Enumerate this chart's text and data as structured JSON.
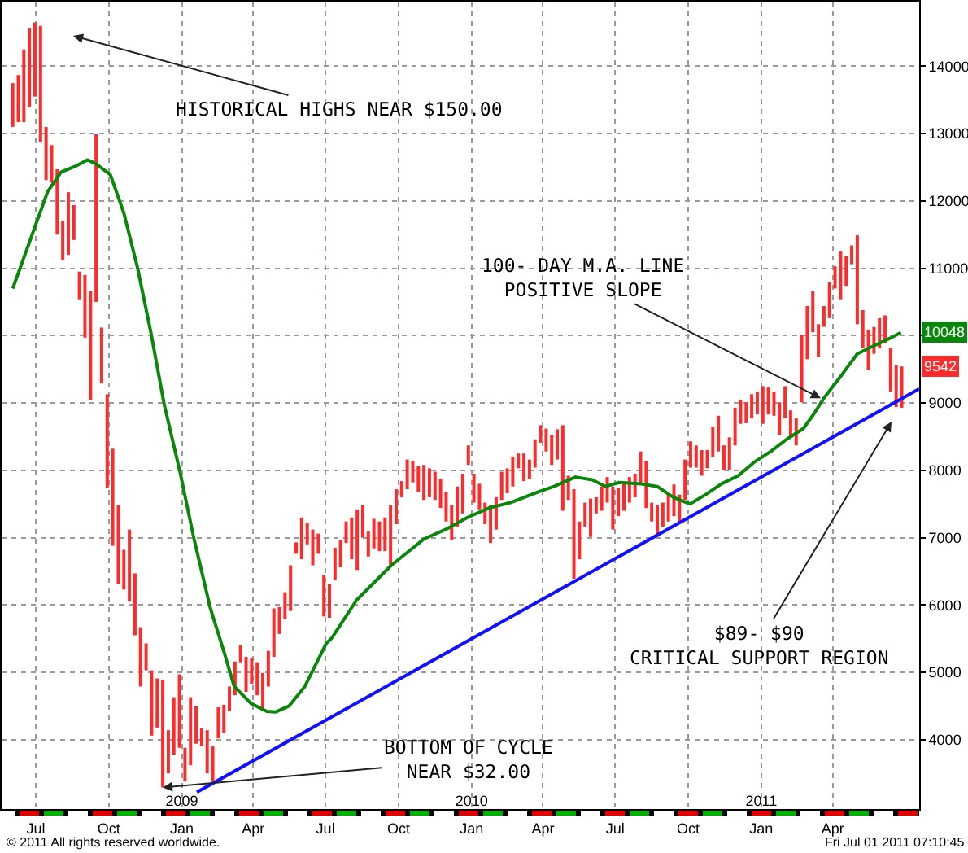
{
  "chart_data": {
    "type": "bar",
    "xlim": [
      "2008-05-19",
      "2011-07-19"
    ],
    "ylim": [
      2970,
      14960
    ],
    "xticks": [
      {
        "value": "2008-07-01",
        "label": "Jul"
      },
      {
        "value": "2008-10-01",
        "label": "Oct"
      },
      {
        "value": "2009-01-01",
        "label": "Jan"
      },
      {
        "value": "2009-04-01",
        "label": "Apr"
      },
      {
        "value": "2009-07-01",
        "label": "Jul"
      },
      {
        "value": "2009-10-01",
        "label": "Oct"
      },
      {
        "value": "2010-01-01",
        "label": "Jan"
      },
      {
        "value": "2010-04-01",
        "label": "Apr"
      },
      {
        "value": "2010-07-01",
        "label": "Jul"
      },
      {
        "value": "2010-10-01",
        "label": "Oct"
      },
      {
        "value": "2011-01-01",
        "label": "Jan"
      },
      {
        "value": "2011-04-01",
        "label": "Apr"
      }
    ],
    "x2lim": [
      "2008-05-19",
      "2011-07-19"
    ],
    "x2ticks": [
      {
        "value": "2009-01-01",
        "label": "2009"
      },
      {
        "value": "2010-01-01",
        "label": "2010"
      },
      {
        "value": "2011-01-01",
        "label": "2011"
      }
    ],
    "yticks": [
      4000,
      5000,
      6000,
      7000,
      8000,
      9000,
      {
        "value": 10000,
        "label": null
      },
      11000,
      12000,
      13000,
      14000
    ],
    "grid": true,
    "series": [
      {
        "color": "#ff2a2a",
        "x": [
          "2008-06-02",
          "2008-06-09",
          "2008-06-16",
          "2008-06-23",
          "2008-06-30",
          "2008-07-07",
          "2008-07-14",
          "2008-07-21",
          "2008-07-28",
          "2008-08-04",
          "2008-08-11",
          "2008-08-18",
          "2008-08-25",
          "2008-09-01",
          "2008-09-08",
          "2008-09-15",
          "2008-09-22",
          "2008-09-29",
          "2008-10-06",
          "2008-10-13",
          "2008-10-20",
          "2008-10-27",
          "2008-11-03",
          "2008-11-10",
          "2008-11-17",
          "2008-11-24",
          "2008-12-01",
          "2008-12-08",
          "2008-12-15",
          "2008-12-22",
          "2008-12-29",
          "2009-01-05",
          "2009-01-12",
          "2009-01-19",
          "2009-01-26",
          "2009-02-02",
          "2009-02-09",
          "2009-02-16",
          "2009-02-23",
          "2009-03-02",
          "2009-03-09",
          "2009-03-16",
          "2009-03-23",
          "2009-03-30",
          "2009-04-06",
          "2009-04-13",
          "2009-04-20",
          "2009-04-27",
          "2009-05-04",
          "2009-05-11",
          "2009-05-18",
          "2009-05-25",
          "2009-06-01",
          "2009-06-08",
          "2009-06-15",
          "2009-06-22",
          "2009-06-29",
          "2009-07-06",
          "2009-07-13",
          "2009-07-20",
          "2009-07-27",
          "2009-08-03",
          "2009-08-10",
          "2009-08-17",
          "2009-08-24",
          "2009-08-31",
          "2009-09-07",
          "2009-09-14",
          "2009-09-21",
          "2009-09-28",
          "2009-10-05",
          "2009-10-12",
          "2009-10-19",
          "2009-10-26",
          "2009-11-02",
          "2009-11-09",
          "2009-11-16",
          "2009-11-23",
          "2009-11-30",
          "2009-12-07",
          "2009-12-14",
          "2009-12-21",
          "2009-12-28",
          "2010-01-04",
          "2010-01-11",
          "2010-01-18",
          "2010-01-25",
          "2010-02-01",
          "2010-02-08",
          "2010-02-15",
          "2010-02-22",
          "2010-03-01",
          "2010-03-08",
          "2010-03-15",
          "2010-03-22",
          "2010-03-29",
          "2010-04-05",
          "2010-04-12",
          "2010-04-19",
          "2010-04-26",
          "2010-05-03",
          "2010-05-10",
          "2010-05-17",
          "2010-05-24",
          "2010-05-31",
          "2010-06-07",
          "2010-06-14",
          "2010-06-21",
          "2010-06-28",
          "2010-07-05",
          "2010-07-12",
          "2010-07-19",
          "2010-07-26",
          "2010-08-02",
          "2010-08-09",
          "2010-08-16",
          "2010-08-23",
          "2010-08-30",
          "2010-09-06",
          "2010-09-13",
          "2010-09-20",
          "2010-09-27",
          "2010-10-04",
          "2010-10-11",
          "2010-10-18",
          "2010-10-25",
          "2010-11-01",
          "2010-11-08",
          "2010-11-15",
          "2010-11-22",
          "2010-11-29",
          "2010-12-06",
          "2010-12-13",
          "2010-12-20",
          "2010-12-27",
          "2011-01-03",
          "2011-01-10",
          "2011-01-17",
          "2011-01-24",
          "2011-01-31",
          "2011-02-07",
          "2011-02-14",
          "2011-02-21",
          "2011-02-28",
          "2011-03-07",
          "2011-03-14",
          "2011-03-21",
          "2011-03-28",
          "2011-04-04",
          "2011-04-11",
          "2011-04-18",
          "2011-04-25",
          "2011-05-02",
          "2011-05-09",
          "2011-05-16",
          "2011-05-23",
          "2011-05-30",
          "2011-06-06",
          "2011-06-13",
          "2011-06-20",
          "2011-06-27"
        ],
        "base": [
          13100,
          13170,
          13170,
          13390,
          13550,
          12870,
          12310,
          12270,
          11500,
          11120,
          11200,
          11420,
          10540,
          9970,
          9050,
          10500,
          9290,
          7740,
          6880,
          6310,
          6230,
          6050,
          5550,
          4790,
          5030,
          4060,
          4180,
          3290,
          3500,
          3780,
          3880,
          3380,
          3620,
          3940,
          3900,
          3500,
          3380,
          4020,
          4100,
          4420,
          4660,
          5150,
          4710,
          4830,
          4660,
          4460,
          4790,
          5230,
          5570,
          5790,
          5910,
          6760,
          6680,
          6900,
          6590,
          6760,
          5830,
          5810,
          6370,
          6560,
          6920,
          6680,
          6520,
          7000,
          6720,
          6840,
          6800,
          6800,
          6560,
          7200,
          7600,
          7720,
          7820,
          7680,
          7560,
          7600,
          7560,
          7440,
          7240,
          6960,
          7160,
          7360,
          8080,
          7520,
          7420,
          7200,
          6920,
          7120,
          7560,
          7660,
          7760,
          8030,
          7840,
          7870,
          8040,
          8410,
          8280,
          8080,
          8160,
          7400,
          7560,
          6390,
          6680,
          7160,
          7010,
          7360,
          7400,
          7520,
          7120,
          7320,
          7400,
          7520,
          7600,
          7800,
          7440,
          7240,
          7010,
          7160,
          7240,
          7320,
          7240,
          7560,
          8040,
          8040,
          7920,
          8030,
          8200,
          8280,
          8000,
          8000,
          8370,
          8690,
          8700,
          8770,
          8830,
          8690,
          8830,
          8810,
          8530,
          8770,
          8490,
          8370,
          9010,
          9650,
          10050,
          9690,
          10130,
          10260,
          10700,
          10540,
          10740,
          11060,
          10170,
          9810,
          9490,
          9730,
          9810,
          9890,
          9170,
          8940,
          8930
        ],
        "values": [
          650,
          700,
          1080,
          1170,
          1100,
          1730,
          790,
          560,
          970,
          580,
          930,
          520,
          410,
          930,
          1610,
          2490,
          830,
          1390,
          1440,
          1170,
          590,
          1070,
          920,
          880,
          400,
          970,
          730,
          1600,
          640,
          850,
          1090,
          500,
          1010,
          560,
          270,
          640,
          520,
          460,
          420,
          370,
          500,
          250,
          520,
          380,
          490,
          530,
          530,
          720,
          400,
          400,
          680,
          170,
          620,
          320,
          530,
          300,
          610,
          500,
          480,
          400,
          320,
          620,
          900,
          480,
          370,
          440,
          440,
          500,
          920,
          520,
          240,
          440,
          320,
          380,
          520,
          430,
          420,
          430,
          440,
          520,
          600,
          590,
          290,
          430,
          380,
          320,
          560,
          480,
          420,
          370,
          440,
          220,
          410,
          290,
          420,
          260,
          340,
          450,
          450,
          1270,
          360,
          1330,
          560,
          360,
          570,
          240,
          360,
          380,
          640,
          420,
          400,
          380,
          350,
          480,
          700,
          280,
          470,
          360,
          420,
          470,
          400,
          600,
          390,
          330,
          380,
          270,
          450,
          530,
          370,
          490,
          560,
          360,
          310,
          360,
          340,
          560,
          400,
          360,
          480,
          480,
          400,
          400,
          1000,
          790,
          610,
          480,
          310,
          530,
          330,
          720,
          440,
          280,
          1320,
          570,
          600,
          400,
          450,
          410,
          640,
          620,
          612
        ]
      },
      {
        "type": "line",
        "color": "#0a870a",
        "x": [
          "2008-06-02",
          "2008-07-16",
          "2008-08-02",
          "2008-08-19",
          "2008-09-04",
          "2008-09-15",
          "2008-10-03",
          "2008-10-20",
          "2008-11-06",
          "2008-11-23",
          "2008-12-10",
          "2008-12-30",
          "2009-01-16",
          "2009-02-06",
          "2009-02-23",
          "2009-03-08",
          "2009-03-29",
          "2009-04-18",
          "2009-04-29",
          "2009-05-16",
          "2009-06-05",
          "2009-07-02",
          "2009-07-09",
          "2009-08-09",
          "2009-09-22",
          "2009-11-02",
          "2009-11-29",
          "2009-12-27",
          "2010-01-23",
          "2010-02-19",
          "2010-03-26",
          "2010-04-15",
          "2010-05-12",
          "2010-06-02",
          "2010-06-19",
          "2010-07-06",
          "2010-08-02",
          "2010-08-23",
          "2010-09-12",
          "2010-10-03",
          "2010-10-23",
          "2010-11-12",
          "2010-12-03",
          "2010-12-23",
          "2011-01-13",
          "2011-02-02",
          "2011-02-23",
          "2011-03-09",
          "2011-03-22",
          "2011-04-12",
          "2011-05-02",
          "2011-05-23",
          "2011-06-12",
          "2011-06-26"
        ],
        "values": [
          10700,
          12140,
          12430,
          12510,
          12610,
          12550,
          12390,
          11820,
          11020,
          10050,
          8970,
          7960,
          7000,
          5950,
          5310,
          4790,
          4540,
          4420,
          4410,
          4500,
          4790,
          5430,
          5510,
          6070,
          6590,
          6980,
          7120,
          7300,
          7440,
          7520,
          7680,
          7760,
          7900,
          7860,
          7760,
          7820,
          7800,
          7760,
          7600,
          7500,
          7640,
          7800,
          7920,
          8120,
          8280,
          8460,
          8620,
          8850,
          9090,
          9410,
          9730,
          9850,
          9960,
          10048
        ]
      },
      {
        "type": "line",
        "color": "#1010ff",
        "x": [
          "2009-01-20",
          "2011-07-19"
        ],
        "values": [
          3220,
          9210
        ]
      }
    ],
    "annotations": [
      "HISTORICAL HIGHS NEAR $150.00",
      {
        "text": "100- DAY M.A. LINE\nPOSITIVE SLOPE",
        "x": "2011-03-17",
        "y": 9070
      },
      "$89- $90\nCRITICAL SUPPORT REGION",
      {
        "text": "BOTTOM OF CYCLE\nNEAR $32.00",
        "x": "2008-12-08",
        "y": 3290
      },
      {
        "text": "10048",
        "y": 10048
      },
      {
        "text": "9542",
        "y": 9542
      },
      "© 2011 All rights reserved worldwide.",
      "Fri Jul 01 2011 07:10:45"
    ]
  }
}
